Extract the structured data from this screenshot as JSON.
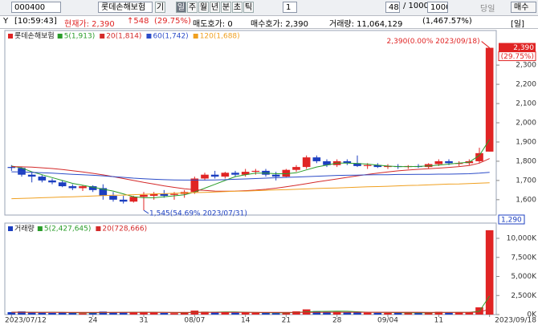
{
  "toolbar": {
    "code": "000400",
    "name": "롯데손해보험",
    "buttons": [
      "기",
      "일",
      "주",
      "월",
      "년",
      "분",
      "초",
      "틱"
    ],
    "period_input": "1",
    "count": "48",
    "count_total": "/ 1000",
    "count_max": "1000",
    "today": "당일",
    "buy": "매수"
  },
  "info": {
    "y": "Y",
    "time": "[10:59:43]",
    "price": "현재가: 2,390",
    "change": "↑548",
    "change_pct": "(29.75%)",
    "ask": "매도호가: 0",
    "bid": "매수호가: 2,390",
    "volume": "거래량: 11,064,129",
    "volume_pct": "(1,467.57%)",
    "period": "[일]"
  },
  "chart_data": [
    {
      "type": "candlestick",
      "legend_name": "롯데손해보험",
      "up_color": "#e02424",
      "down_color": "#1c3fc0",
      "categories": [
        "2023/07/12",
        null,
        null,
        null,
        null,
        null,
        null,
        null,
        "24",
        null,
        null,
        null,
        null,
        "31",
        null,
        null,
        null,
        null,
        "08/07",
        null,
        null,
        null,
        null,
        "14",
        null,
        null,
        null,
        "21",
        null,
        null,
        null,
        null,
        "28",
        null,
        null,
        null,
        null,
        "09/04",
        null,
        null,
        null,
        null,
        "11",
        null,
        null,
        null,
        null,
        "2023/09/18"
      ],
      "open": [
        1770,
        1765,
        1730,
        1720,
        1700,
        1690,
        1670,
        1660,
        1670,
        1660,
        1620,
        1600,
        1590,
        1615,
        1620,
        1630,
        1625,
        1630,
        1640,
        1710,
        1730,
        1720,
        1740,
        1730,
        1745,
        1750,
        1730,
        1720,
        1755,
        1770,
        1820,
        1800,
        1780,
        1800,
        1790,
        1775,
        1780,
        1770,
        1775,
        1770,
        1775,
        1770,
        1785,
        1800,
        1790,
        1790,
        1800,
        1850
      ],
      "high": [
        1780,
        1770,
        1745,
        1730,
        1710,
        1700,
        1680,
        1675,
        1675,
        1680,
        1640,
        1620,
        1620,
        1640,
        1640,
        1650,
        1640,
        1650,
        1720,
        1740,
        1750,
        1745,
        1750,
        1760,
        1760,
        1760,
        1745,
        1760,
        1780,
        1830,
        1830,
        1810,
        1810,
        1810,
        1830,
        1790,
        1790,
        1785,
        1785,
        1780,
        1785,
        1790,
        1810,
        1810,
        1800,
        1810,
        1870,
        2390
      ],
      "low": [
        1750,
        1720,
        1690,
        1690,
        1680,
        1665,
        1650,
        1645,
        1640,
        1600,
        1590,
        1580,
        1585,
        1545,
        1600,
        1610,
        1600,
        1610,
        1630,
        1700,
        1710,
        1710,
        1720,
        1720,
        1730,
        1720,
        1700,
        1715,
        1745,
        1760,
        1790,
        1770,
        1770,
        1780,
        1770,
        1760,
        1765,
        1760,
        1760,
        1760,
        1765,
        1760,
        1775,
        1780,
        1775,
        1780,
        1790,
        1850
      ],
      "close": [
        1765,
        1730,
        1720,
        1700,
        1690,
        1670,
        1660,
        1670,
        1650,
        1620,
        1600,
        1590,
        1615,
        1625,
        1630,
        1620,
        1630,
        1640,
        1710,
        1730,
        1720,
        1740,
        1730,
        1745,
        1750,
        1730,
        1720,
        1755,
        1770,
        1820,
        1800,
        1780,
        1800,
        1790,
        1775,
        1780,
        1770,
        1775,
        1770,
        1775,
        1770,
        1785,
        1800,
        1790,
        1790,
        1800,
        1842,
        2390
      ],
      "series": [
        {
          "name": "5(1,913)",
          "color": "#2a9d2a",
          "values": [
            1775,
            1765,
            1745,
            1730,
            1715,
            1700,
            1685,
            1675,
            1665,
            1655,
            1645,
            1630,
            1615,
            1610,
            1610,
            1615,
            1620,
            1625,
            1640,
            1660,
            1680,
            1700,
            1720,
            1730,
            1738,
            1738,
            1735,
            1735,
            1740,
            1755,
            1770,
            1780,
            1790,
            1790,
            1788,
            1785,
            1780,
            1775,
            1772,
            1772,
            1773,
            1776,
            1780,
            1785,
            1790,
            1795,
            1830,
            1913
          ]
        },
        {
          "name": "20(1,814)",
          "color": "#d42a2a",
          "values": [
            1772,
            1771,
            1769,
            1766,
            1762,
            1757,
            1751,
            1744,
            1737,
            1729,
            1720,
            1710,
            1700,
            1690,
            1681,
            1672,
            1664,
            1657,
            1652,
            1648,
            1645,
            1644,
            1645,
            1647,
            1650,
            1654,
            1660,
            1667,
            1675,
            1683,
            1692,
            1700,
            1708,
            1716,
            1724,
            1731,
            1738,
            1744,
            1750,
            1754,
            1758,
            1761,
            1764,
            1768,
            1772,
            1778,
            1790,
            1814
          ]
        },
        {
          "name": "60(1,742)",
          "color": "#2c4cc8",
          "values": [
            1745,
            1744,
            1742,
            1740,
            1738,
            1735,
            1732,
            1730,
            1727,
            1724,
            1720,
            1716,
            1712,
            1709,
            1706,
            1704,
            1703,
            1702,
            1702,
            1702,
            1703,
            1704,
            1706,
            1708,
            1710,
            1712,
            1714,
            1716,
            1718,
            1720,
            1722,
            1724,
            1726,
            1727,
            1728,
            1729,
            1730,
            1730,
            1731,
            1731,
            1732,
            1732,
            1733,
            1733,
            1734,
            1735,
            1738,
            1742
          ]
        },
        {
          "name": "120(1,688)",
          "color": "#f0a020",
          "values": [
            1605,
            1607,
            1608,
            1610,
            1612,
            1614,
            1615,
            1617,
            1619,
            1621,
            1623,
            1624,
            1626,
            1628,
            1630,
            1631,
            1633,
            1635,
            1637,
            1638,
            1640,
            1642,
            1644,
            1645,
            1647,
            1649,
            1651,
            1652,
            1654,
            1656,
            1658,
            1660,
            1661,
            1663,
            1665,
            1667,
            1668,
            1670,
            1672,
            1674,
            1675,
            1677,
            1679,
            1681,
            1682,
            1684,
            1686,
            1688
          ]
        }
      ],
      "ylim": [
        1520,
        2480
      ],
      "yticks": [
        {
          "value": 1600,
          "label": "1,600"
        },
        {
          "value": 1700,
          "label": "1,700"
        },
        {
          "value": 1800,
          "label": "1,800"
        },
        {
          "value": 1900,
          "label": "1,900"
        },
        {
          "value": 2000,
          "label": "2,000"
        },
        {
          "value": 2100,
          "label": "2,100"
        },
        {
          "value": 2200,
          "label": "2,200"
        },
        {
          "value": 2300,
          "label": "2,300"
        }
      ],
      "high_annotation": "2,390(0.00% 2023/09/18)",
      "low_annotation": "1,545(54.69% 2023/07/31)",
      "price_label": "2,390",
      "pct_label": "(29.75%)",
      "limit_label": "1,290"
    },
    {
      "type": "bar",
      "title": "거래량",
      "values": [
        320,
        410,
        280,
        250,
        220,
        260,
        240,
        180,
        230,
        390,
        310,
        290,
        270,
        350,
        260,
        210,
        190,
        230,
        520,
        380,
        300,
        280,
        250,
        270,
        240,
        220,
        200,
        280,
        420,
        680,
        450,
        330,
        360,
        280,
        300,
        250,
        230,
        210,
        260,
        220,
        240,
        280,
        360,
        250,
        270,
        310,
        950,
        11064.129
      ],
      "series": [
        {
          "name": "5(2,427,645)",
          "color": "#2a9d2a",
          "values": [
            300,
            310,
            300,
            290,
            300,
            290,
            250,
            240,
            230,
            260,
            270,
            280,
            300,
            310,
            300,
            290,
            260,
            250,
            280,
            300,
            320,
            350,
            340,
            300,
            270,
            250,
            240,
            240,
            270,
            360,
            410,
            420,
            440,
            430,
            370,
            310,
            290,
            270,
            260,
            240,
            230,
            240,
            270,
            270,
            280,
            290,
            430,
            2427.645
          ]
        },
        {
          "name": "20(728,666)",
          "color": "#d42a2a",
          "values": [
            300,
            300,
            299,
            298,
            297,
            296,
            294,
            292,
            290,
            290,
            289,
            288,
            287,
            287,
            286,
            286,
            285,
            284,
            287,
            290,
            290,
            289,
            288,
            287,
            286,
            285,
            284,
            285,
            288,
            295,
            298,
            300,
            302,
            303,
            304,
            305,
            305,
            304,
            303,
            302,
            300,
            298,
            296,
            294,
            292,
            290,
            320,
            728.666
          ]
        }
      ],
      "ylim": [
        0,
        12000
      ],
      "yticks": [
        {
          "value": 0,
          "label": "0K"
        },
        {
          "value": 2500,
          "label": "2,500K"
        },
        {
          "value": 5000,
          "label": "5,000K"
        },
        {
          "value": 7500,
          "label": "7,500K"
        },
        {
          "value": 10000,
          "label": "10,000K"
        }
      ]
    }
  ]
}
